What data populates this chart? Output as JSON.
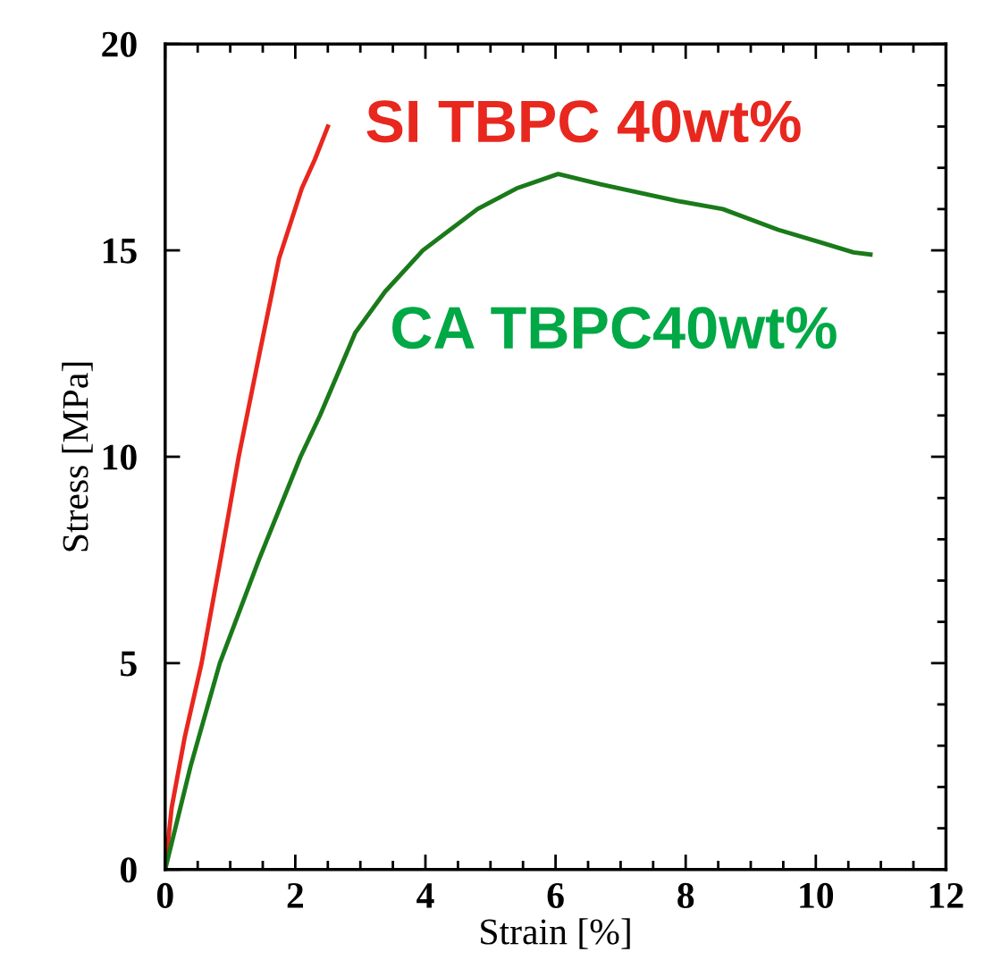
{
  "chart_data": {
    "type": "line",
    "xlabel": "Strain [%]",
    "ylabel": "Stress [MPa]",
    "xlim": [
      0,
      12
    ],
    "ylim": [
      0,
      20
    ],
    "xticks": [
      0,
      2,
      4,
      6,
      8,
      10,
      12
    ],
    "yticks": [
      0,
      5,
      10,
      15,
      20
    ],
    "grid": false,
    "legend": false,
    "marker": "none",
    "line_style": "solid",
    "series": [
      {
        "name": "SI TBPC 40wt%",
        "color": "#e8271e",
        "x": [
          0,
          0.1,
          0.3,
          0.56,
          0.85,
          1.13,
          1.45,
          1.75,
          2.1,
          2.3,
          2.45,
          2.5
        ],
        "values": [
          0,
          1.5,
          3.2,
          5,
          7.5,
          10,
          12.5,
          14.8,
          16.5,
          17.2,
          17.8,
          18
        ]
      },
      {
        "name": "CA TBPC40wt%",
        "color": "#1a7a1a",
        "x": [
          0,
          0.39,
          0.84,
          1.44,
          2.08,
          2.38,
          2.92,
          3.38,
          3.96,
          4.8,
          5.4,
          6.04,
          6.69,
          7.86,
          8.57,
          9.42,
          10.06,
          10.58,
          10.84
        ],
        "values": [
          0,
          2.5,
          5,
          7.5,
          10,
          11,
          13,
          14,
          15,
          16,
          16.5,
          16.85,
          16.6,
          16.2,
          16.0,
          15.5,
          15.2,
          14.95,
          14.9
        ]
      }
    ]
  }
}
